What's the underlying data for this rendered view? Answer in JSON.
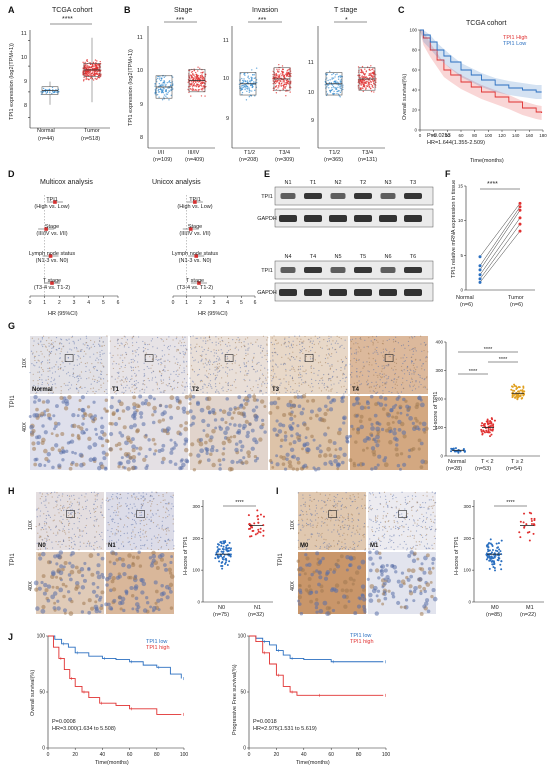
{
  "panels": {
    "A": {
      "letter": "A",
      "title": "TCGA cohort",
      "ylabel": "TPI1 expression (log2(TPM+1))",
      "sig": "****",
      "yticks": [
        "8",
        "9",
        "10",
        "11"
      ],
      "groups": [
        {
          "name": "Normal",
          "n": "(n=44)",
          "median": 9.05,
          "q1": 8.9,
          "q3": 9.2,
          "min": 8.5,
          "max": 9.4,
          "color": "#3a8fd1"
        },
        {
          "name": "Tumor",
          "n": "(n=518)",
          "median": 9.85,
          "q1": 9.6,
          "q3": 10.1,
          "min": 8.6,
          "max": 11.1,
          "color": "#e03030"
        }
      ]
    },
    "B": {
      "letter": "B",
      "ylabel": "TPI1 expression (log2(TPM+1))",
      "subpanels": [
        {
          "title": "Stage",
          "sig": "***",
          "yticks": [
            "8",
            "9",
            "10",
            "11"
          ],
          "groups": [
            {
              "name": "I/II",
              "n": "(n=109)",
              "median": 9.7
            },
            {
              "name": "III/IV",
              "n": "(n=409)",
              "median": 9.9
            }
          ]
        },
        {
          "title": "Invasion",
          "sig": "***",
          "yticks": [
            "9",
            "10",
            "11"
          ],
          "groups": [
            {
              "name": "T1/2",
              "n": "(n=208)",
              "median": 9.8
            },
            {
              "name": "T3/4",
              "n": "(n=309)",
              "median": 9.95
            }
          ]
        },
        {
          "title": "T stage",
          "sig": "*",
          "yticks": [
            "9",
            "10",
            "11"
          ],
          "groups": [
            {
              "name": "T1/2",
              "n": "(n=365)",
              "median": 9.8
            },
            {
              "name": "T3/4",
              "n": "(n=131)",
              "median": 9.95
            }
          ]
        }
      ]
    },
    "C": {
      "letter": "C",
      "title": "TCGA cohort",
      "ylabel": "Overall survival(%)",
      "xlabel": "Time(months)",
      "legend_high": "TPI1 High",
      "legend_low": "TPI1 Low",
      "pval": "P=0.0253",
      "hr": "HR=1.644(1.355-2.509)",
      "xticks": [
        "0",
        "20",
        "40",
        "60",
        "80",
        "100",
        "120",
        "140",
        "160",
        "180"
      ],
      "yticks": [
        "0",
        "20",
        "40",
        "60",
        "80",
        "100"
      ],
      "color_high": "#e03030",
      "color_low": "#2a6fc0"
    },
    "D": {
      "letter": "D",
      "multi_title": "Multicox analysis",
      "uni_title": "Unicox analysis",
      "xlabel": "HR (95%CI)",
      "rows": [
        {
          "label": "TPI1",
          "sub": "(High vs. Low)"
        },
        {
          "label": "Stage",
          "sub": "(III/IV vs. I/II)"
        },
        {
          "label": "Lymph node status",
          "sub": "(N1-3 vs. N0)"
        },
        {
          "label": "T stage",
          "sub": "(T3-4 vs. T1-2)"
        }
      ],
      "xticks": [
        "0",
        "1",
        "2",
        "3",
        "4",
        "5",
        "6"
      ],
      "multi_hr": [
        1.7,
        1.1,
        1.4,
        1.5
      ],
      "uni_hr": [
        1.6,
        1.3,
        1.7,
        1.9
      ]
    },
    "E": {
      "letter": "E",
      "top_lanes": [
        "N1",
        "T1",
        "N2",
        "T2",
        "N3",
        "T3"
      ],
      "bot_lanes": [
        "N4",
        "T4",
        "N5",
        "T5",
        "N6",
        "T6"
      ],
      "rows": [
        "TPI1",
        "GAPDH"
      ]
    },
    "F": {
      "letter": "F",
      "ylabel": "TPI1 relative mRNA expression in tissue",
      "sig": "****",
      "groups": [
        {
          "name": "Normal",
          "n": "(n=6)"
        },
        {
          "name": "Tumor",
          "n": "(n=6)"
        }
      ],
      "yticks": [
        "0",
        "5",
        "10",
        "15"
      ],
      "normal": [
        4.8,
        3.5,
        2.9,
        2.2,
        1.6,
        1.1
      ],
      "tumor": [
        12.5,
        12.0,
        11.5,
        10.4,
        9.5,
        8.5
      ]
    },
    "G": {
      "letter": "G",
      "side": "TPI1",
      "mag10": "10X",
      "mag40": "40X",
      "tags": [
        "Normal",
        "T1",
        "T2",
        "T3",
        "T4"
      ],
      "ylabel": "H-score of TPI1",
      "yticks": [
        "0",
        "100",
        "200",
        "300",
        "400"
      ],
      "groups": [
        {
          "name": "Normal",
          "n": "(n=28)"
        },
        {
          "name": "T < 2",
          "n": "(n=53)"
        },
        {
          "name": "T ≥ 2",
          "n": "(n=54)"
        }
      ],
      "sig": "****",
      "means": [
        20,
        100,
        220
      ]
    },
    "H": {
      "letter": "H",
      "side": "TPI1",
      "mag10": "10X",
      "mag40": "40X",
      "tags": [
        "N0",
        "N1"
      ],
      "ylabel": "H-score of TPI1",
      "yticks": [
        "0",
        "100",
        "200",
        "300"
      ],
      "groups": [
        {
          "name": "N0",
          "n": "(n=75)"
        },
        {
          "name": "N1",
          "n": "(n=32)"
        }
      ],
      "sig": "****",
      "means": [
        150,
        240
      ]
    },
    "I": {
      "letter": "I",
      "side": "TPI1",
      "mag10": "10X",
      "mag40": "40X",
      "tags": [
        "M0",
        "M1"
      ],
      "ylabel": "H-score of TPI1",
      "yticks": [
        "0",
        "100",
        "200",
        "300"
      ],
      "groups": [
        {
          "name": "M0",
          "n": "(n=85)"
        },
        {
          "name": "M1",
          "n": "(n=22)"
        }
      ],
      "sig": "****",
      "means": [
        150,
        240
      ]
    },
    "J": {
      "letter": "J",
      "left": {
        "ylabel": "Overall survival(%)",
        "xlabel": "Time(months)",
        "legend_low": "TPI1 low",
        "legend_high": "TPI1 high",
        "pval": "P=0.0008",
        "hr": "HR=3.000(1.634 to 5.508)"
      },
      "right": {
        "ylabel": "Progressive Free survival(%)",
        "xlabel": "Time(months)",
        "legend_low": "TPI1 low",
        "legend_high": "TPI1 high",
        "pval": "P=0.0018",
        "hr": "HR=2.975(1.531 to 5.619)"
      },
      "xticks": [
        "0",
        "20",
        "40",
        "60",
        "80",
        "100"
      ],
      "yticks": [
        "0",
        "50",
        "100"
      ],
      "color_low": "#2a6fc0",
      "color_high": "#e03030"
    }
  }
}
